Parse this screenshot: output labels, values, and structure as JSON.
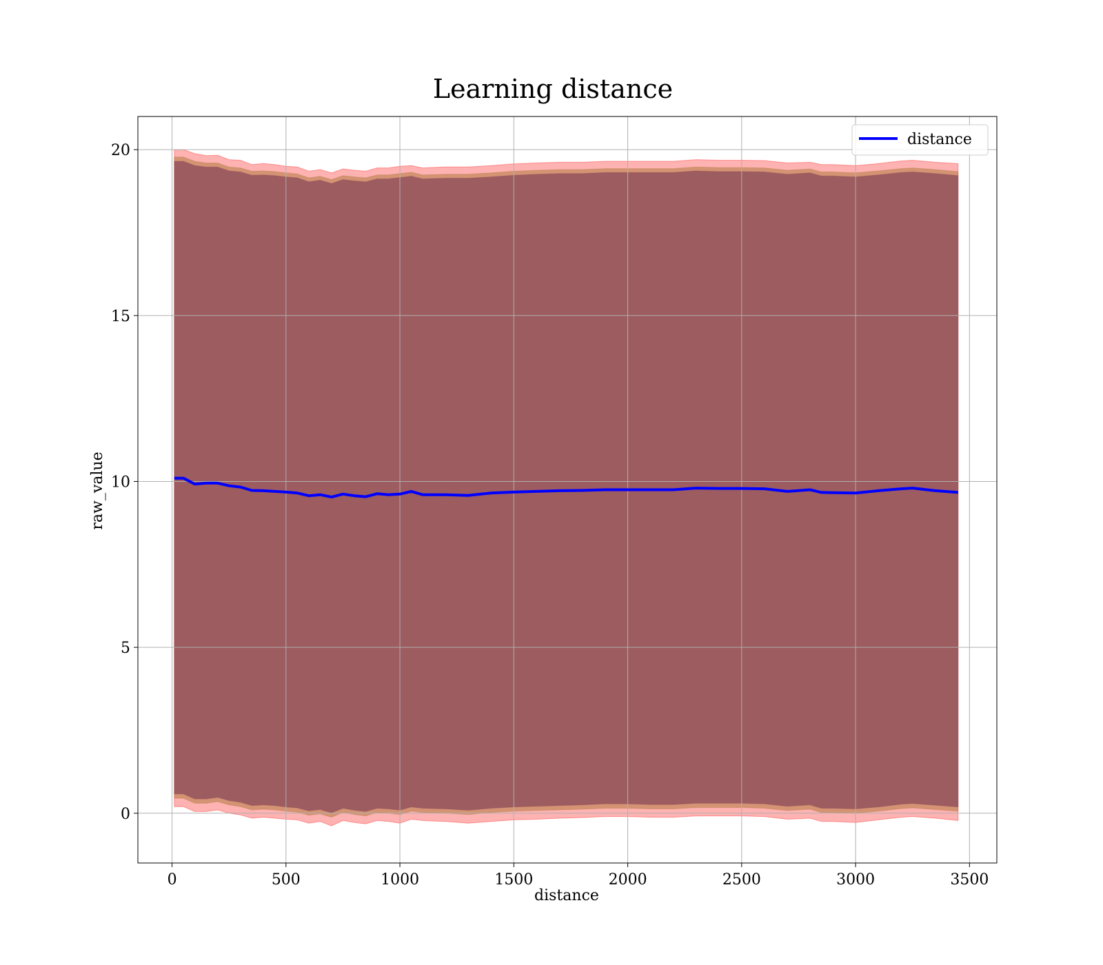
{
  "chart_data": {
    "type": "line",
    "title": "Learning distance",
    "xlabel": "distance",
    "ylabel": "raw_value",
    "xlim": [
      -150,
      3620
    ],
    "ylim": [
      -1.5,
      21
    ],
    "x_ticks": [
      0,
      500,
      1000,
      1500,
      2000,
      2500,
      3000,
      3500
    ],
    "x_tick_labels": [
      "0",
      "500",
      "1000",
      "1500",
      "2000",
      "2500",
      "3000",
      "3500"
    ],
    "y_ticks": [
      0,
      5,
      10,
      15,
      20
    ],
    "y_tick_labels": [
      "0",
      "5",
      "10",
      "15",
      "20"
    ],
    "grid": true,
    "legend": {
      "placement": "top-right",
      "entries": [
        "distance"
      ]
    },
    "colors": {
      "line": "#0000ff",
      "outer_band": "#ff0000",
      "inner_band": "#8b4a5a",
      "mid_band": "#b07a40"
    },
    "series": [
      {
        "name": "distance",
        "x": [
          10,
          50,
          100,
          150,
          200,
          250,
          300,
          350,
          400,
          450,
          500,
          550,
          600,
          650,
          700,
          750,
          800,
          850,
          900,
          950,
          1000,
          1050,
          1100,
          1200,
          1300,
          1400,
          1500,
          1600,
          1700,
          1800,
          1900,
          2000,
          2100,
          2200,
          2300,
          2400,
          2500,
          2600,
          2700,
          2800,
          2850,
          2900,
          3000,
          3100,
          3200,
          3250,
          3350,
          3450
        ],
        "y": [
          10.1,
          10.1,
          9.92,
          9.95,
          9.95,
          9.87,
          9.83,
          9.73,
          9.72,
          9.7,
          9.68,
          9.65,
          9.57,
          9.6,
          9.53,
          9.62,
          9.57,
          9.54,
          9.63,
          9.6,
          9.62,
          9.7,
          9.6,
          9.6,
          9.58,
          9.65,
          9.68,
          9.7,
          9.72,
          9.73,
          9.75,
          9.75,
          9.75,
          9.75,
          9.8,
          9.79,
          9.79,
          9.78,
          9.7,
          9.75,
          9.67,
          9.66,
          9.65,
          9.72,
          9.78,
          9.8,
          9.72,
          9.67
        ]
      }
    ],
    "bands": [
      {
        "role": "outer",
        "upper": [
          20.0,
          20.0,
          19.88,
          19.82,
          19.83,
          19.7,
          19.68,
          19.55,
          19.58,
          19.55,
          19.5,
          19.48,
          19.35,
          19.4,
          19.3,
          19.42,
          19.38,
          19.35,
          19.45,
          19.45,
          19.5,
          19.52,
          19.45,
          19.48,
          19.48,
          19.52,
          19.57,
          19.6,
          19.62,
          19.62,
          19.65,
          19.65,
          19.65,
          19.65,
          19.7,
          19.68,
          19.68,
          19.67,
          19.6,
          19.62,
          19.55,
          19.55,
          19.52,
          19.58,
          19.66,
          19.68,
          19.62,
          19.58
        ],
        "lower": [
          0.2,
          0.2,
          0.05,
          0.05,
          0.1,
          0.0,
          -0.05,
          -0.15,
          -0.12,
          -0.15,
          -0.18,
          -0.2,
          -0.3,
          -0.25,
          -0.38,
          -0.22,
          -0.28,
          -0.32,
          -0.22,
          -0.25,
          -0.3,
          -0.18,
          -0.22,
          -0.25,
          -0.3,
          -0.25,
          -0.2,
          -0.18,
          -0.15,
          -0.13,
          -0.1,
          -0.1,
          -0.12,
          -0.12,
          -0.08,
          -0.08,
          -0.08,
          -0.1,
          -0.18,
          -0.15,
          -0.25,
          -0.25,
          -0.28,
          -0.2,
          -0.12,
          -0.1,
          -0.15,
          -0.22
        ]
      },
      {
        "role": "mid",
        "upper": [
          19.78,
          19.78,
          19.65,
          19.6,
          19.6,
          19.48,
          19.45,
          19.35,
          19.36,
          19.34,
          19.3,
          19.27,
          19.15,
          19.2,
          19.1,
          19.22,
          19.18,
          19.15,
          19.24,
          19.24,
          19.28,
          19.32,
          19.24,
          19.26,
          19.26,
          19.3,
          19.35,
          19.38,
          19.4,
          19.4,
          19.43,
          19.43,
          19.43,
          19.43,
          19.48,
          19.46,
          19.46,
          19.45,
          19.38,
          19.42,
          19.33,
          19.33,
          19.3,
          19.36,
          19.43,
          19.45,
          19.4,
          19.34
        ],
        "lower": [
          0.45,
          0.45,
          0.3,
          0.3,
          0.35,
          0.25,
          0.2,
          0.1,
          0.12,
          0.1,
          0.06,
          0.03,
          -0.06,
          -0.02,
          -0.12,
          0.02,
          -0.04,
          -0.08,
          0.02,
          0.0,
          -0.04,
          0.06,
          0.02,
          0.0,
          -0.04,
          0.02,
          0.06,
          0.08,
          0.1,
          0.12,
          0.15,
          0.15,
          0.13,
          0.13,
          0.17,
          0.17,
          0.17,
          0.15,
          0.08,
          0.12,
          0.02,
          0.02,
          0.0,
          0.06,
          0.14,
          0.16,
          0.11,
          0.06
        ]
      },
      {
        "role": "inner",
        "upper": [
          19.65,
          19.65,
          19.52,
          19.48,
          19.48,
          19.36,
          19.33,
          19.23,
          19.24,
          19.22,
          19.18,
          19.15,
          19.03,
          19.08,
          18.98,
          19.1,
          19.06,
          19.03,
          19.12,
          19.12,
          19.16,
          19.2,
          19.12,
          19.14,
          19.14,
          19.18,
          19.23,
          19.26,
          19.28,
          19.28,
          19.31,
          19.31,
          19.31,
          19.31,
          19.36,
          19.34,
          19.34,
          19.33,
          19.26,
          19.3,
          19.21,
          19.21,
          19.18,
          19.24,
          19.31,
          19.33,
          19.28,
          19.22
        ],
        "lower": [
          0.58,
          0.58,
          0.43,
          0.43,
          0.48,
          0.38,
          0.33,
          0.23,
          0.25,
          0.23,
          0.19,
          0.16,
          0.07,
          0.11,
          0.01,
          0.15,
          0.09,
          0.05,
          0.15,
          0.13,
          0.09,
          0.19,
          0.15,
          0.13,
          0.09,
          0.15,
          0.19,
          0.21,
          0.23,
          0.25,
          0.28,
          0.28,
          0.26,
          0.26,
          0.3,
          0.3,
          0.3,
          0.28,
          0.21,
          0.25,
          0.15,
          0.15,
          0.13,
          0.19,
          0.27,
          0.29,
          0.24,
          0.19
        ]
      }
    ]
  }
}
